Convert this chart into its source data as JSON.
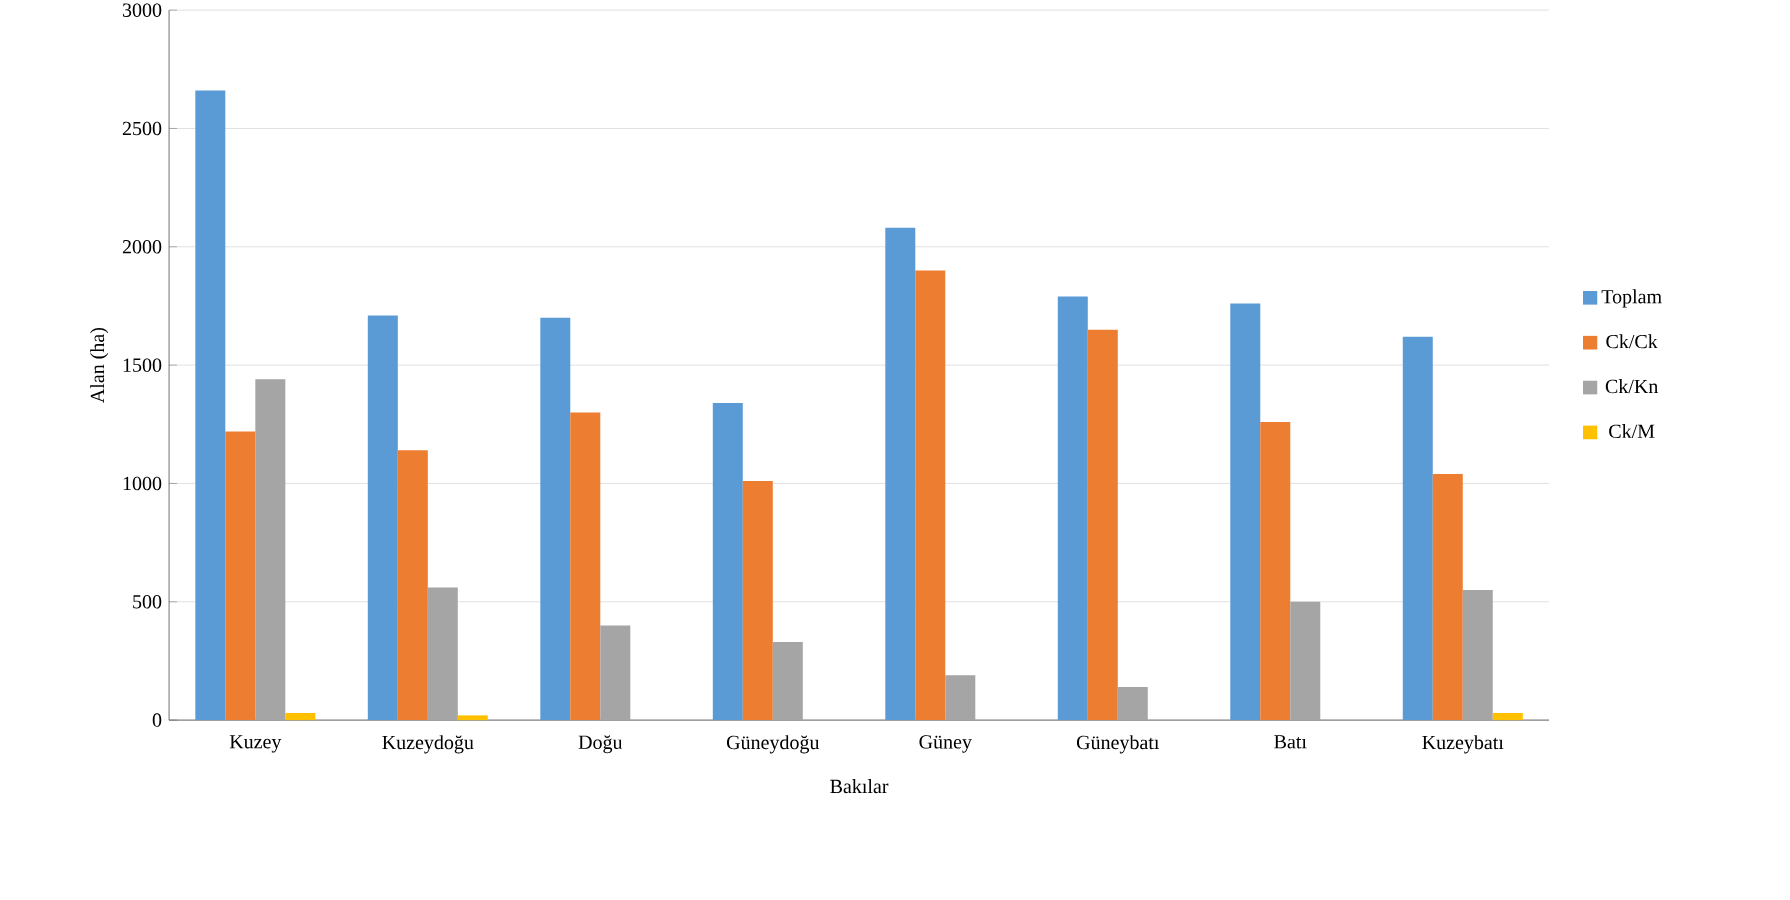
{
  "chart_data": {
    "type": "bar",
    "xlabel": "Bakılar",
    "ylabel": "Alan (ha)",
    "categories": [
      "Kuzey",
      "Kuzeydoğu",
      "Doğu",
      "Güneydoğu",
      "Güney",
      "Güneybatı",
      "Batı",
      "Kuzeybatı"
    ],
    "series": [
      {
        "name": "Toplam",
        "color": "#5b9bd5",
        "values": [
          2660,
          1710,
          1700,
          1340,
          2080,
          1790,
          1760,
          1620
        ]
      },
      {
        "name": "Ck/Ck",
        "color": "#ed7d31",
        "values": [
          1220,
          1140,
          1300,
          1010,
          1900,
          1650,
          1260,
          1040
        ]
      },
      {
        "name": "Ck/Kn",
        "color": "#a5a5a5",
        "values": [
          1440,
          560,
          400,
          330,
          190,
          140,
          500,
          550
        ]
      },
      {
        "name": "Ck/M",
        "color": "#ffc000",
        "values": [
          30,
          20,
          0,
          0,
          0,
          0,
          0,
          30
        ]
      }
    ],
    "ylim": [
      0,
      3000
    ],
    "yticks": [
      0,
      500,
      1000,
      1500,
      2000,
      2500,
      3000
    ],
    "grid": "y",
    "legend": "right"
  }
}
